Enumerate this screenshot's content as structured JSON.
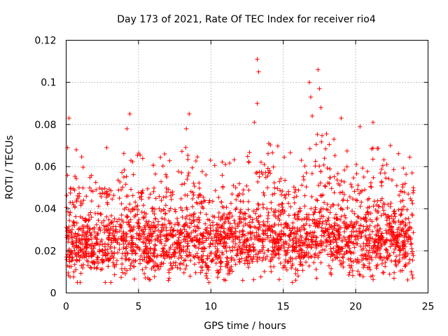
{
  "chart_data": {
    "type": "scatter",
    "title": "Day 173 of 2021, Rate Of TEC Index for receiver rio4",
    "xlabel": "GPS time / hours",
    "ylabel": "ROTI / TECUs",
    "xlim": [
      0,
      25
    ],
    "ylim": [
      0,
      0.12
    ],
    "xticks": [
      0,
      5,
      10,
      15,
      20,
      25
    ],
    "yticks": [
      0,
      0.02,
      0.04,
      0.06,
      0.08,
      0.1,
      0.12
    ],
    "xtick_labels": [
      "0",
      "5",
      "10",
      "15",
      "20",
      "25"
    ],
    "ytick_labels": [
      "0",
      "0.02",
      "0.04",
      "0.06",
      "0.08",
      "0.1",
      "0.12"
    ],
    "grid": true,
    "marker": "+",
    "color": "#ff0000",
    "series": [
      {
        "name": "ROTI",
        "x_range_hours": [
          0,
          24
        ],
        "median_roti": 0.022,
        "typical_min": 0.008,
        "typical_max": 0.045,
        "notable_points": [
          {
            "x": 0.2,
            "y": 0.083
          },
          {
            "x": 0.1,
            "y": 0.069
          },
          {
            "x": 0.7,
            "y": 0.068
          },
          {
            "x": 2.8,
            "y": 0.069
          },
          {
            "x": 4.4,
            "y": 0.085
          },
          {
            "x": 4.2,
            "y": 0.078
          },
          {
            "x": 6.8,
            "y": 0.066
          },
          {
            "x": 8.5,
            "y": 0.085
          },
          {
            "x": 8.3,
            "y": 0.078
          },
          {
            "x": 11.0,
            "y": 0.061
          },
          {
            "x": 13.2,
            "y": 0.111
          },
          {
            "x": 13.3,
            "y": 0.105
          },
          {
            "x": 13.2,
            "y": 0.09
          },
          {
            "x": 13.0,
            "y": 0.081
          },
          {
            "x": 14.0,
            "y": 0.071
          },
          {
            "x": 16.8,
            "y": 0.1
          },
          {
            "x": 16.9,
            "y": 0.093
          },
          {
            "x": 17.4,
            "y": 0.106
          },
          {
            "x": 17.5,
            "y": 0.097
          },
          {
            "x": 17.0,
            "y": 0.084
          },
          {
            "x": 17.6,
            "y": 0.088
          },
          {
            "x": 19.0,
            "y": 0.083
          },
          {
            "x": 18.5,
            "y": 0.073
          },
          {
            "x": 20.3,
            "y": 0.079
          },
          {
            "x": 21.2,
            "y": 0.081
          },
          {
            "x": 22.4,
            "y": 0.07
          },
          {
            "x": 23.9,
            "y": 0.057
          },
          {
            "x": 2.7,
            "y": 0.005
          },
          {
            "x": 11.0,
            "y": 0.006
          },
          {
            "x": 12.2,
            "y": 0.006
          },
          {
            "x": 17.3,
            "y": 0.007
          }
        ]
      }
    ]
  }
}
